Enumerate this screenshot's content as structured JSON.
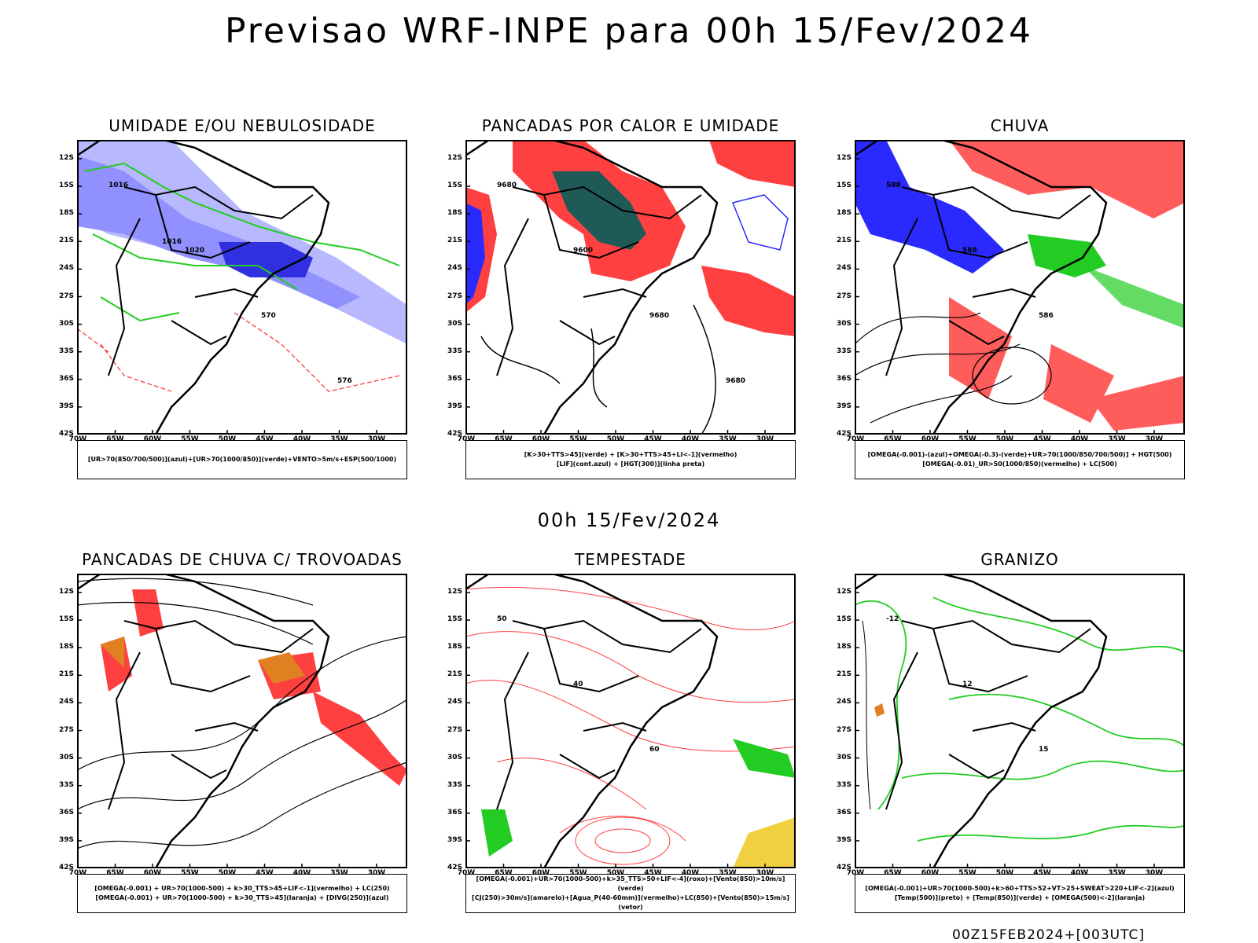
{
  "title": "Previsao WRF-INPE  para 00h 15/Fev/2024",
  "date_label": "00h 15/Fev/2024",
  "footer": "00Z15FEB2024+[003UTC]",
  "axes": {
    "lat_labels": [
      "12S",
      "15S",
      "18S",
      "21S",
      "24S",
      "27S",
      "30S",
      "33S",
      "36S",
      "39S",
      "42S"
    ],
    "lon_labels": [
      "70W",
      "65W",
      "60W",
      "55W",
      "50W",
      "45W",
      "40W",
      "35W",
      "30W"
    ]
  },
  "colors": {
    "red": "#ff4040",
    "blue": "#2a2aff",
    "green": "#22cc22",
    "lightblue": "#9090ff",
    "darkteal": "#1f5a57",
    "orange": "#e08020"
  },
  "panels": [
    {
      "title": "UMIDADE E/OU NEBULOSIDADE",
      "caption": [
        "[UR>70(850/700/500)](azul)+[UR>70(1000/850)](verde)+VENTO>5m/s+ESP(500/1000)"
      ],
      "contour_labels": [
        "1016",
        "1020",
        "570",
        "576",
        "1016"
      ]
    },
    {
      "title": "PANCADAS POR CALOR E UMIDADE",
      "caption": [
        "[K>30+TTS>45](verde) + [K>30+TTS>45+LI<-1](vermelho)",
        "[LIF](cont.azul) + [HGT(300)](linha preta)"
      ],
      "contour_labels": [
        "9680",
        "9600",
        "9680",
        "9680"
      ]
    },
    {
      "title": "CHUVA",
      "caption": [
        "[OMEGA(-0.001)-(azul)+OMEGA(-0.3)-(verde)+UR>70(1000/850/700/500)] + HGT(500)",
        "[OMEGA(-0.01)_UR>50(1000/850)(vermelho) + LC(500)"
      ],
      "contour_labels": [
        "588",
        "588",
        "586"
      ]
    },
    {
      "title": "PANCADAS DE CHUVA C/ TROVOADAS",
      "caption": [
        "[OMEGA(-0.001) + UR>70(1000-500) + k>30_TTS>45+LIF<-1](vermelho) + LC(250)",
        "[OMEGA(-0.001) + UR>70(1000-500) + k>30_TTS>45](laranja) + [DIVG(250)](azul)"
      ],
      "contour_labels": []
    },
    {
      "title": "TEMPESTADE",
      "caption": [
        "[OMEGA(-0.001)+UR>70(1000-500)+k>35_TTS>50+LIF<-4](roxo)+[Vento(850)>10m/s](verde)",
        "[CJ(250)>30m/s](amarelo)+[Agua_P(40-60mm)](vermelho)+LC(850)+[Vento(850)>15m/s](vetor)"
      ],
      "contour_labels": [
        "50",
        "40",
        "60"
      ]
    },
    {
      "title": "GRANIZO",
      "caption": [
        "[OMEGA(-0.001)+UR>70(1000-500)+k>60+TTS>52+VT>25+SWEAT>220+LIF<-2](azul)",
        "[Temp(500)](preto) + [Temp(850)](verde) + [OMEGA(500)<-2](laranja)"
      ],
      "contour_labels": [
        "-12",
        "12",
        "15"
      ]
    }
  ]
}
